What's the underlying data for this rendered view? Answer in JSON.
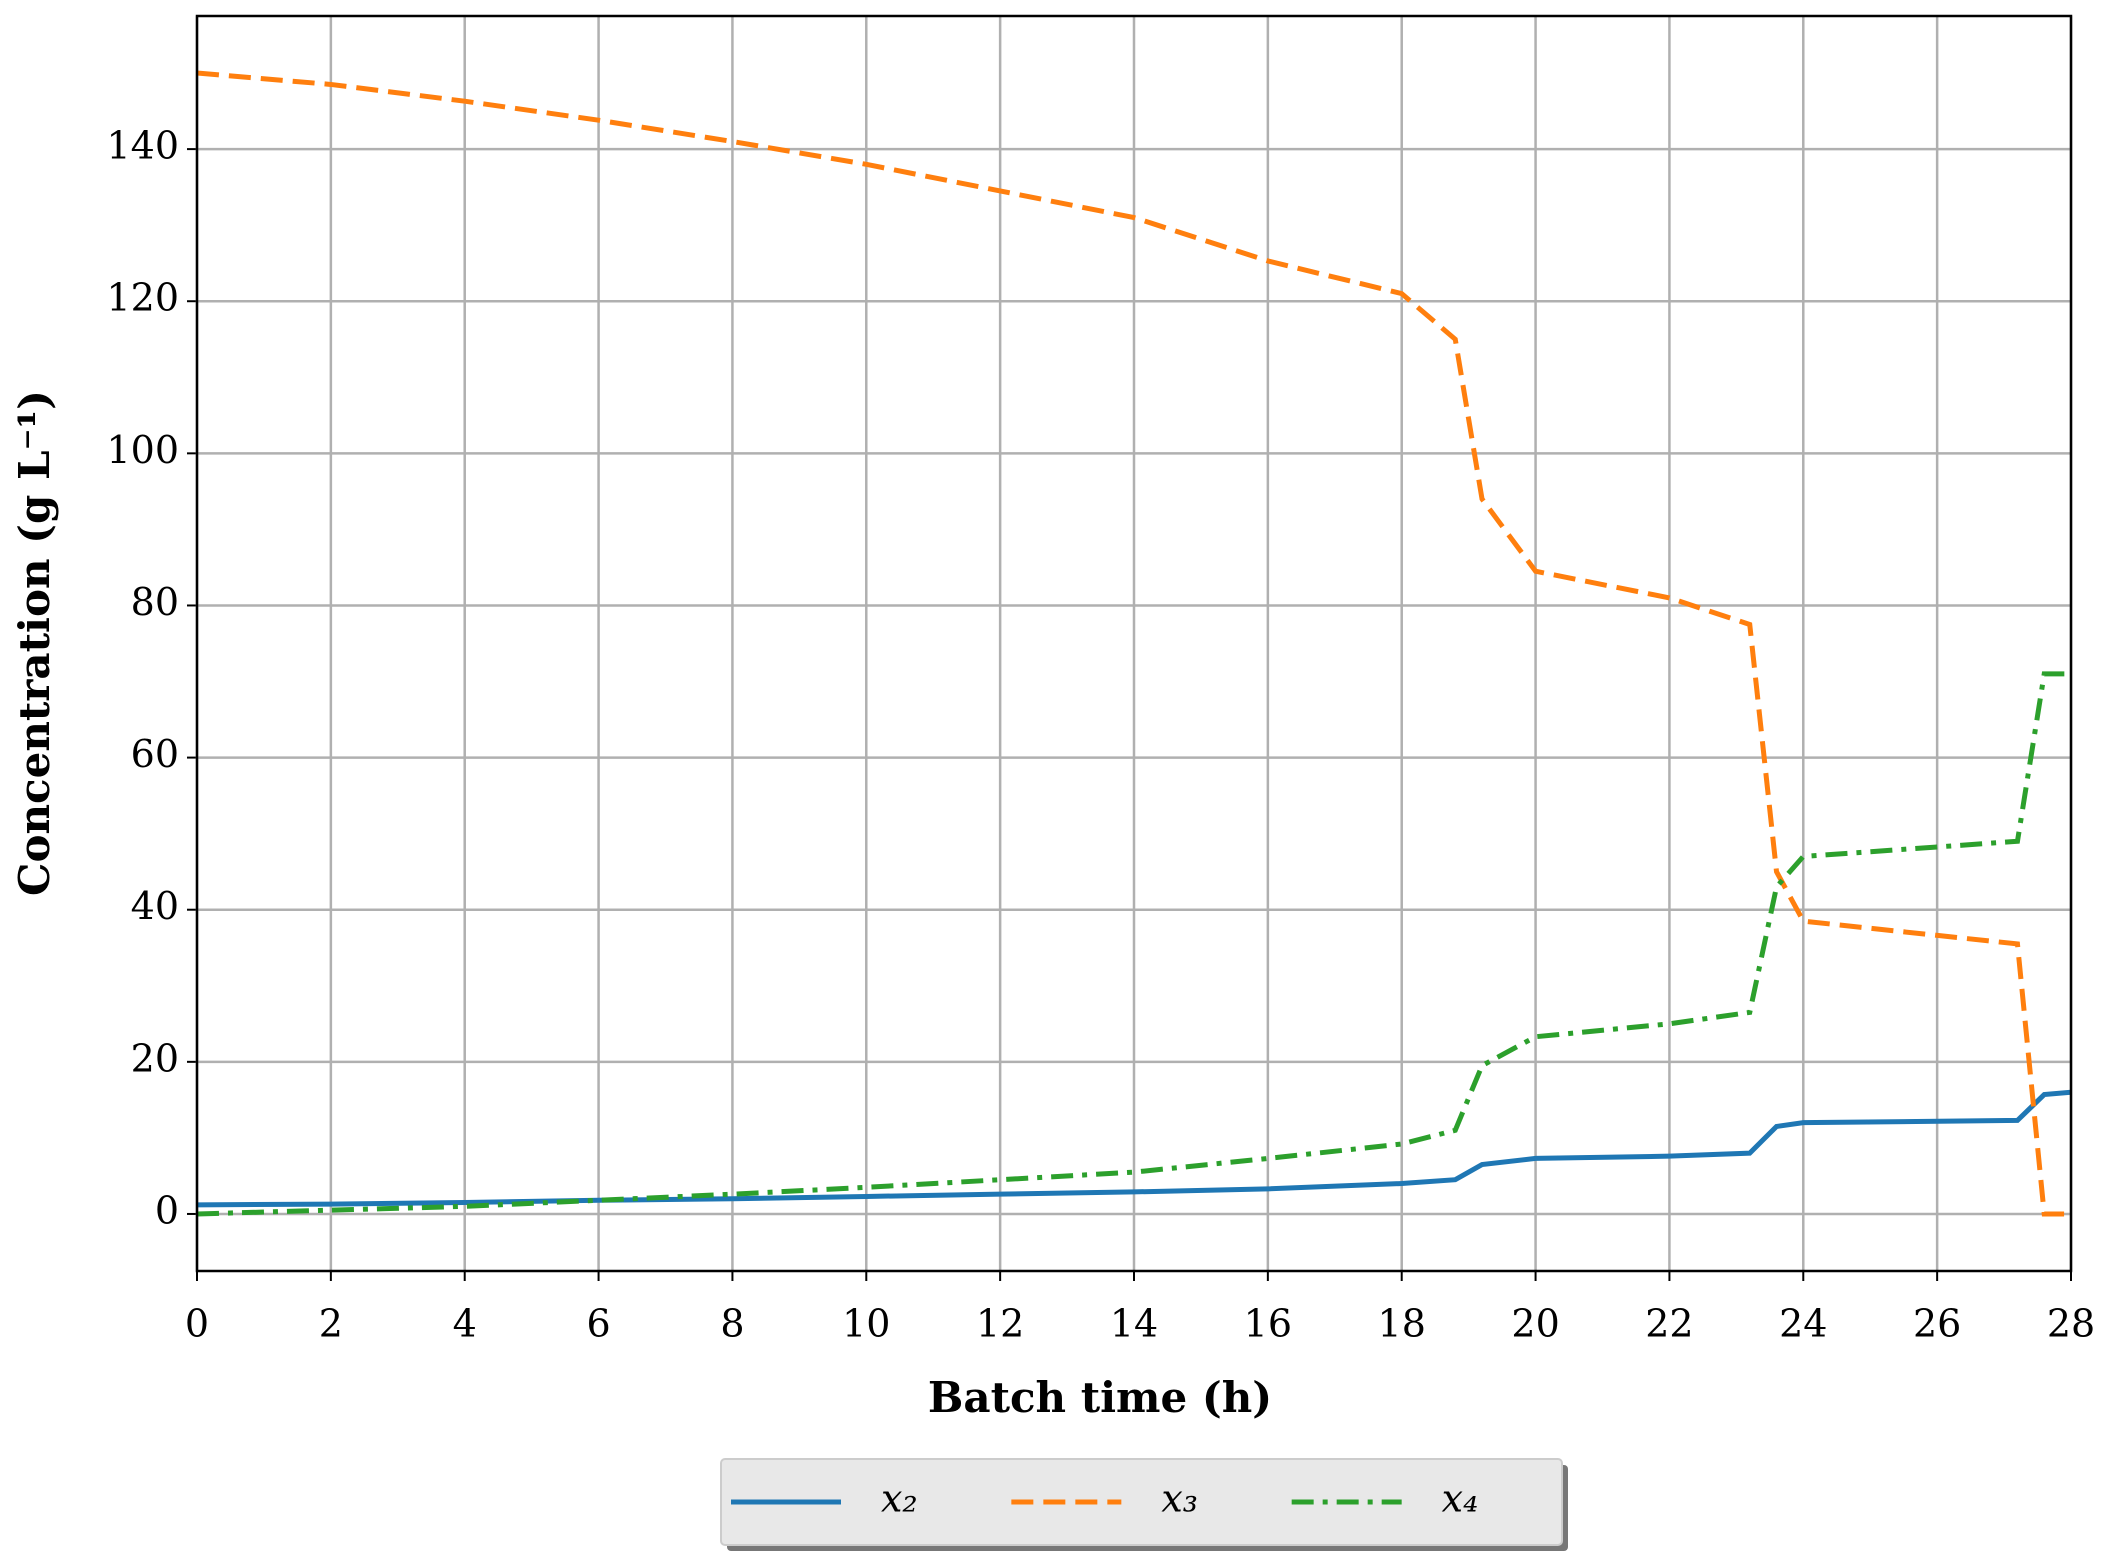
{
  "chart_data": {
    "type": "line",
    "xlabel": "Batch time (h)",
    "ylabel": "Concentration (g L⁻¹)",
    "x": [
      0,
      2,
      4,
      6,
      8,
      10,
      12,
      14,
      16,
      18,
      18.8,
      19.2,
      20,
      22,
      23.2,
      23.6,
      24,
      27.2,
      27.6,
      28
    ],
    "series": [
      {
        "name": "x₂",
        "color": "#1f77b4",
        "linestyle": "solid",
        "values": [
          1.2,
          1.3,
          1.5,
          1.8,
          2,
          2.3,
          2.6,
          2.9,
          3.3,
          4,
          4.5,
          6.5,
          7.3,
          7.6,
          8,
          11.5,
          12,
          12.3,
          15.7,
          16
        ]
      },
      {
        "name": "x₃",
        "color": "#ff7f0e",
        "linestyle": "dashed",
        "values": [
          150,
          148.5,
          146.3,
          143.8,
          141,
          138,
          134.5,
          131,
          125.3,
          121,
          115,
          94,
          84.5,
          81,
          77.5,
          45,
          38.5,
          35.5,
          0,
          0
        ]
      },
      {
        "name": "x₄",
        "color": "#2ca02c",
        "linestyle": "dashdot",
        "values": [
          0,
          0.5,
          1,
          1.8,
          2.6,
          3.5,
          4.5,
          5.5,
          7.3,
          9.2,
          11,
          19.5,
          23.3,
          25,
          26.5,
          43,
          47,
          49,
          71,
          71
        ]
      }
    ],
    "xlim": [
      0,
      28
    ],
    "xticks": [
      0,
      2,
      4,
      6,
      8,
      10,
      12,
      14,
      16,
      18,
      20,
      22,
      24,
      26,
      28
    ],
    "ylim": [
      -7.5,
      157.5
    ],
    "yticks": [
      0,
      20,
      40,
      60,
      80,
      100,
      120,
      140
    ],
    "grid": true,
    "legend": "bottom"
  }
}
